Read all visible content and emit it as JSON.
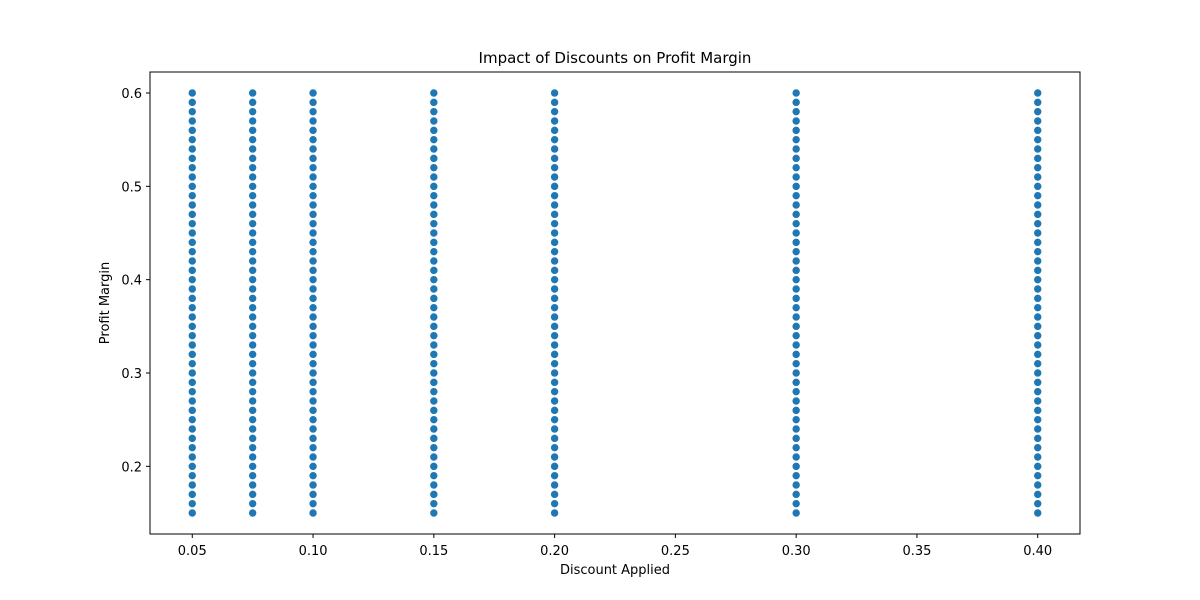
{
  "chart_data": {
    "type": "scatter",
    "title": "Impact of Discounts on Profit Margin",
    "xlabel": "Discount Applied",
    "ylabel": "Profit Margin",
    "xlim": [
      0.0325,
      0.4175
    ],
    "ylim": [
      0.1275,
      0.6225
    ],
    "xticks": [
      0.05,
      0.1,
      0.15,
      0.2,
      0.25,
      0.3,
      0.35,
      0.4
    ],
    "xtick_labels": [
      "0.05",
      "0.10",
      "0.15",
      "0.20",
      "0.25",
      "0.30",
      "0.35",
      "0.40"
    ],
    "yticks": [
      0.2,
      0.3,
      0.4,
      0.5,
      0.6
    ],
    "ytick_labels": [
      "0.2",
      "0.3",
      "0.4",
      "0.5",
      "0.6"
    ],
    "grid": false,
    "marker_color": "#1f77b4",
    "marker_edge_color": "#ffffff",
    "x_values": [
      0.05,
      0.075,
      0.1,
      0.15,
      0.2,
      0.3,
      0.4
    ],
    "y_range": [
      0.15,
      0.6
    ],
    "y_step": 0.01,
    "note_values": "Each discount level has points spanning profit margin 0.15 to 0.60 at roughly 0.01 intervals"
  }
}
